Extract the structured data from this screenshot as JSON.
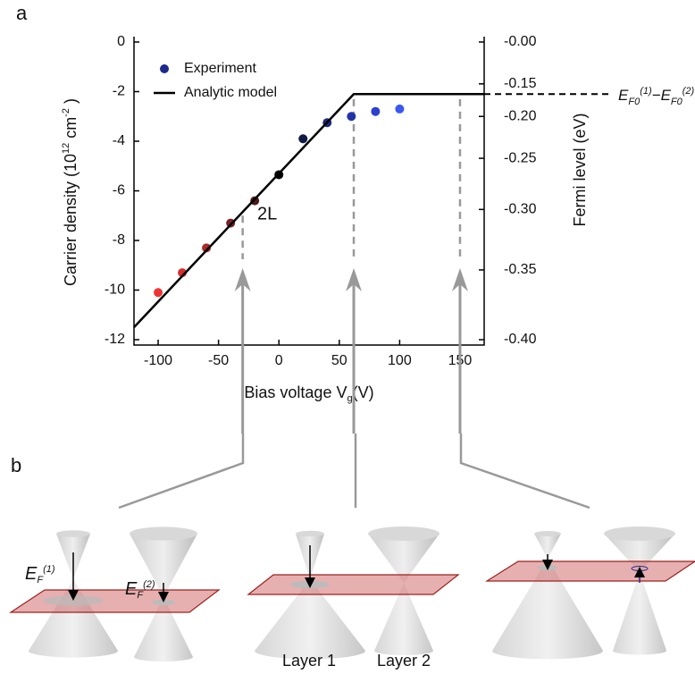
{
  "chart_data": {
    "type": "scatter",
    "panel_label": "a",
    "xlabel": [
      "Bias voltage V",
      "g",
      "(V)"
    ],
    "ylabel": [
      "Carrier density  (10",
      "12",
      " cm",
      "-2",
      " )"
    ],
    "y2label": "Fermi level (eV)",
    "annotation": "2L",
    "side_label": [
      "E",
      "F0",
      "(1)",
      "−",
      "E",
      "F0",
      "(2)"
    ],
    "xlim": [
      -120,
      170
    ],
    "xticks": [
      -100,
      -50,
      0,
      50,
      100,
      150
    ],
    "ylim": [
      -12,
      0
    ],
    "yticks": [
      0,
      -2,
      -4,
      -6,
      -8,
      -10,
      -12
    ],
    "y2scale": "sqrt",
    "y2lim": [
      0,
      -0.4
    ],
    "y2ticks": [
      {
        "value": 0,
        "label": "-0.00"
      },
      -0.15,
      {
        "value": -0.2,
        "label": "-0.20"
      },
      -0.25,
      {
        "value": -0.3,
        "label": "-0.30"
      },
      -0.35,
      {
        "value": -0.4,
        "label": "-0.40"
      }
    ],
    "legend": "upper left",
    "series": [
      {
        "name": "Experiment",
        "color": "#1c2a8a",
        "colors": [
          "#ec3434",
          "#d43030",
          "#a82a2a",
          "#7a2226",
          "#4a1a1a",
          "#000000",
          "#111a44",
          "#1c2a7a",
          "#2233a8",
          "#2a40d0",
          "#3a58f0"
        ],
        "x": [
          -100,
          -80,
          -60,
          -40,
          -20,
          0,
          20,
          40,
          60,
          80,
          100
        ],
        "values": [
          -10.1,
          -9.3,
          -8.3,
          -7.3,
          -6.4,
          -5.35,
          -3.9,
          -3.25,
          -3.0,
          -2.8,
          -2.7
        ]
      },
      {
        "name": "Analytic model",
        "color": "#000000",
        "x": [
          -120,
          62,
          170
        ],
        "values": [
          -11.5,
          -2.1,
          -2.1
        ]
      }
    ],
    "guides": [
      {
        "x": -30,
        "y": -7
      },
      {
        "x": 62,
        "y": -2.3
      },
      {
        "x": 150,
        "y": -2.3
      }
    ]
  },
  "panel_b": {
    "panel_label": "b",
    "ef1": [
      "E",
      "F",
      "(1)"
    ],
    "ef2": [
      "E",
      "F",
      "(2)"
    ],
    "layers": [
      "Layer 1",
      "Layer 2"
    ]
  }
}
